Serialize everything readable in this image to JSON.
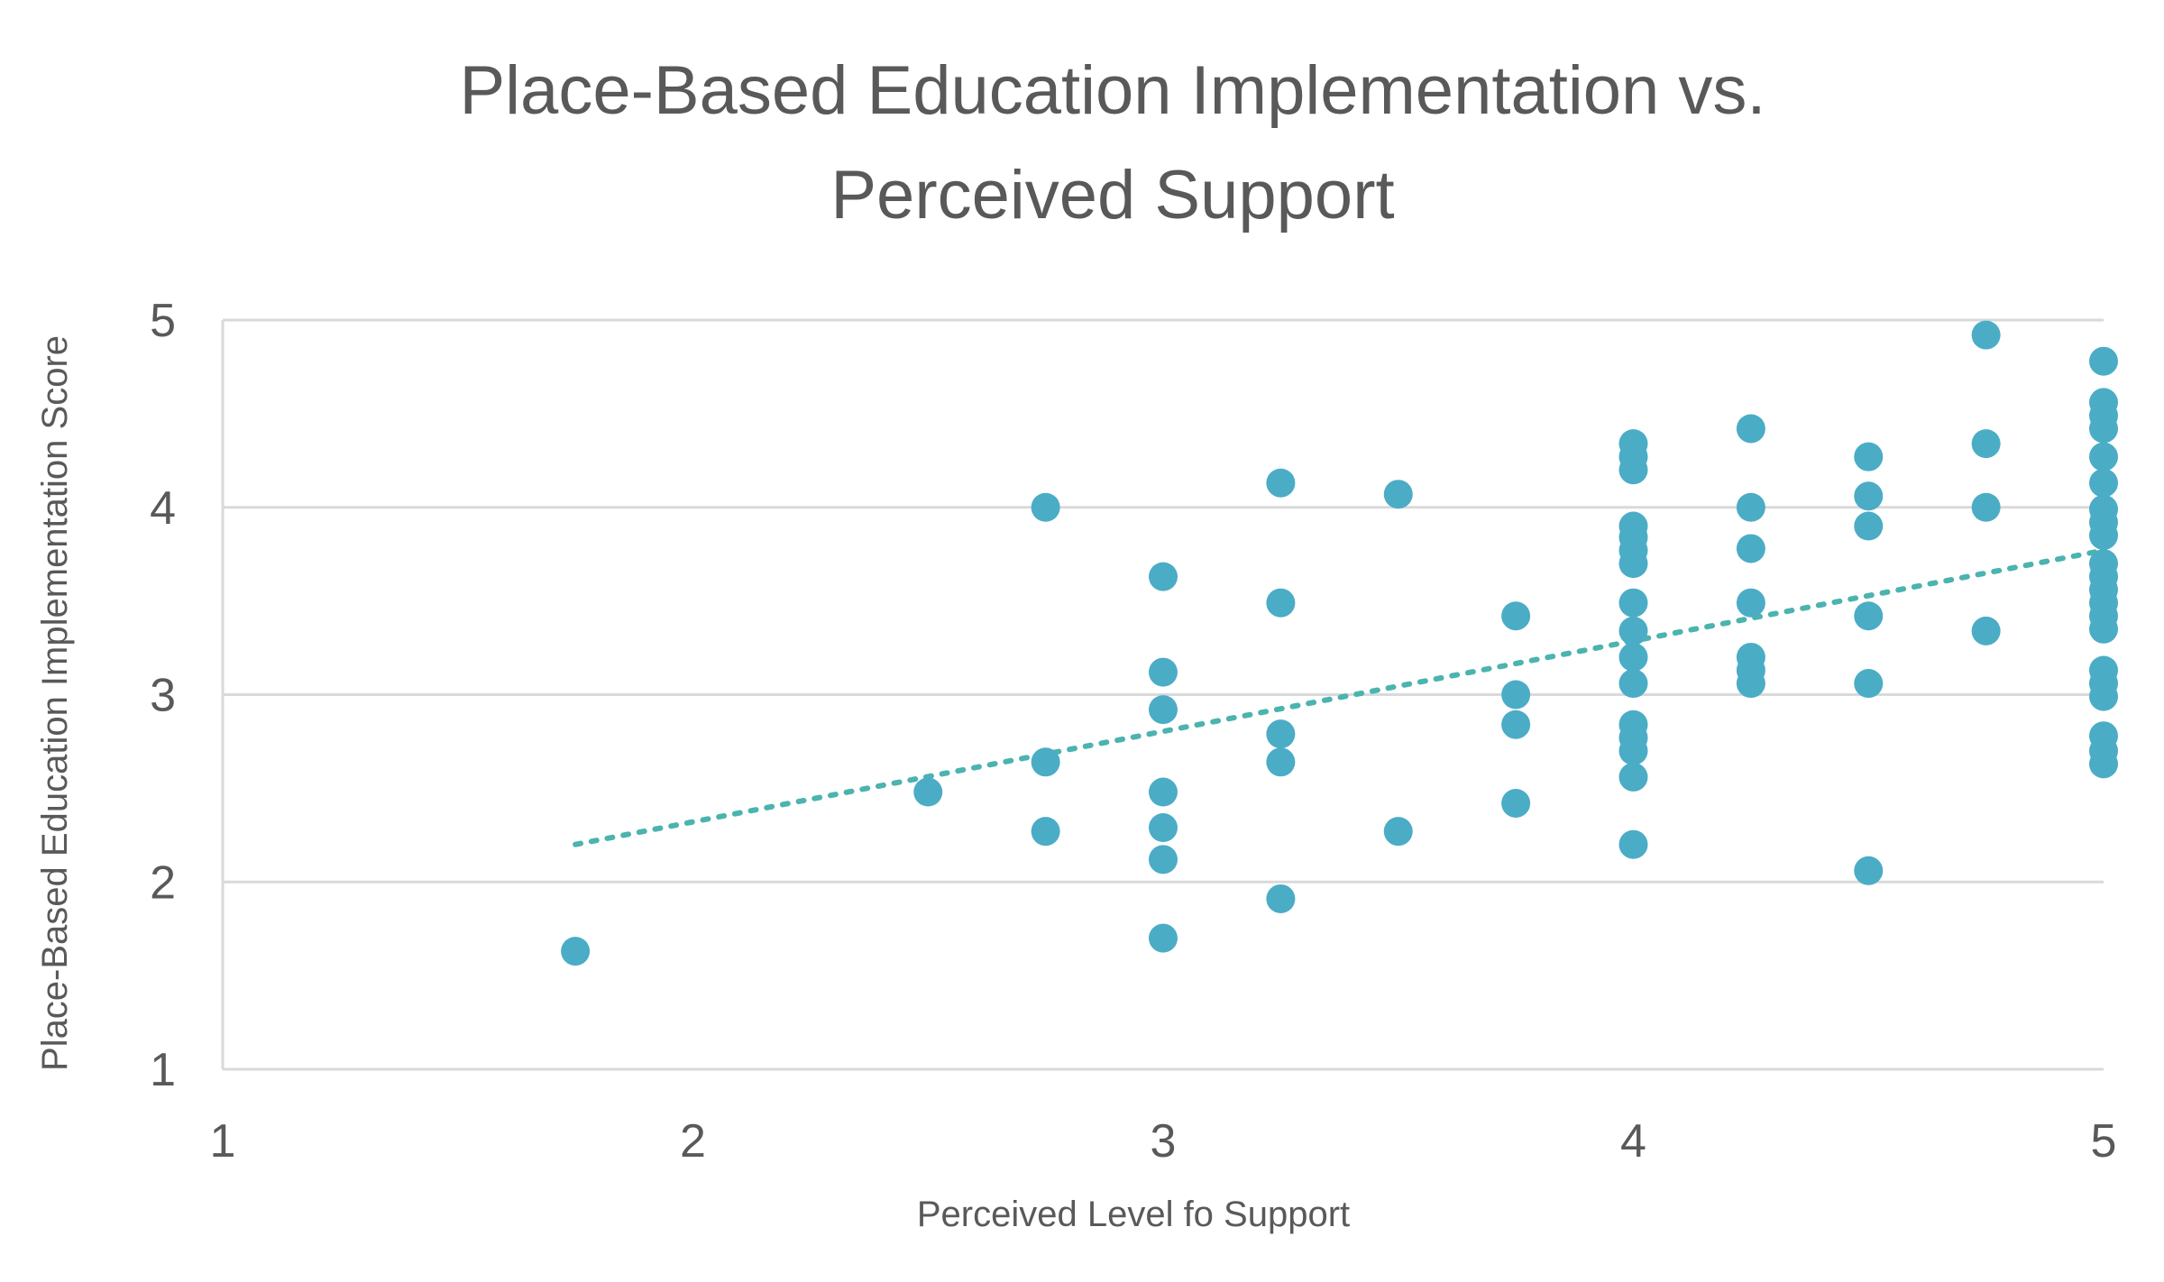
{
  "chart_data": {
    "type": "scatter",
    "title_lines": [
      "Place-Based Education Implementation vs.",
      "Perceived Support"
    ],
    "xlabel": "Perceived Level fo Support",
    "ylabel": "Place-Based Education Implementation Score",
    "xlim": [
      1,
      5
    ],
    "ylim": [
      1,
      5
    ],
    "x_ticks": [
      "1",
      "2",
      "3",
      "4",
      "5"
    ],
    "y_ticks": [
      "1",
      "2",
      "3",
      "4",
      "5"
    ],
    "grid": "horizontal",
    "marker_color": "#4bacc6",
    "trendline": {
      "style": "dotted",
      "color": "#4bb3b0",
      "x": [
        1.75,
        5
      ],
      "y": [
        2.2,
        3.77
      ]
    },
    "points": [
      [
        1.75,
        1.63
      ],
      [
        2.5,
        2.48
      ],
      [
        2.75,
        4.0
      ],
      [
        2.75,
        2.64
      ],
      [
        2.75,
        2.27
      ],
      [
        3.0,
        3.63
      ],
      [
        3.0,
        3.12
      ],
      [
        3.0,
        2.92
      ],
      [
        3.0,
        2.48
      ],
      [
        3.0,
        2.29
      ],
      [
        3.0,
        2.12
      ],
      [
        3.0,
        1.7
      ],
      [
        3.25,
        4.13
      ],
      [
        3.25,
        3.49
      ],
      [
        3.25,
        2.79
      ],
      [
        3.25,
        2.64
      ],
      [
        3.25,
        1.91
      ],
      [
        3.5,
        4.07
      ],
      [
        3.5,
        2.27
      ],
      [
        3.75,
        3.42
      ],
      [
        3.75,
        3.0
      ],
      [
        3.75,
        2.84
      ],
      [
        3.75,
        2.42
      ],
      [
        4.0,
        4.34
      ],
      [
        4.0,
        4.27
      ],
      [
        4.0,
        4.2
      ],
      [
        4.0,
        3.9
      ],
      [
        4.0,
        3.84
      ],
      [
        4.0,
        3.77
      ],
      [
        4.0,
        3.7
      ],
      [
        4.0,
        3.49
      ],
      [
        4.0,
        3.34
      ],
      [
        4.0,
        3.2
      ],
      [
        4.0,
        3.06
      ],
      [
        4.0,
        2.84
      ],
      [
        4.0,
        2.77
      ],
      [
        4.0,
        2.7
      ],
      [
        4.0,
        2.56
      ],
      [
        4.0,
        2.2
      ],
      [
        4.25,
        4.42
      ],
      [
        4.25,
        4.0
      ],
      [
        4.25,
        3.78
      ],
      [
        4.25,
        3.49
      ],
      [
        4.25,
        3.2
      ],
      [
        4.25,
        3.13
      ],
      [
        4.25,
        3.06
      ],
      [
        4.5,
        4.27
      ],
      [
        4.5,
        4.06
      ],
      [
        4.5,
        3.9
      ],
      [
        4.5,
        3.42
      ],
      [
        4.5,
        3.06
      ],
      [
        4.5,
        2.06
      ],
      [
        4.75,
        4.92
      ],
      [
        4.75,
        4.34
      ],
      [
        4.75,
        4.0
      ],
      [
        4.75,
        3.34
      ],
      [
        5.0,
        4.78
      ],
      [
        5.0,
        4.56
      ],
      [
        5.0,
        4.49
      ],
      [
        5.0,
        4.42
      ],
      [
        5.0,
        4.27
      ],
      [
        5.0,
        4.13
      ],
      [
        5.0,
        3.99
      ],
      [
        5.0,
        3.92
      ],
      [
        5.0,
        3.85
      ],
      [
        5.0,
        3.7
      ],
      [
        5.0,
        3.63
      ],
      [
        5.0,
        3.56
      ],
      [
        5.0,
        3.49
      ],
      [
        5.0,
        3.42
      ],
      [
        5.0,
        3.35
      ],
      [
        5.0,
        3.13
      ],
      [
        5.0,
        3.06
      ],
      [
        5.0,
        2.99
      ],
      [
        5.0,
        2.78
      ],
      [
        5.0,
        2.7
      ],
      [
        5.0,
        2.63
      ]
    ]
  }
}
